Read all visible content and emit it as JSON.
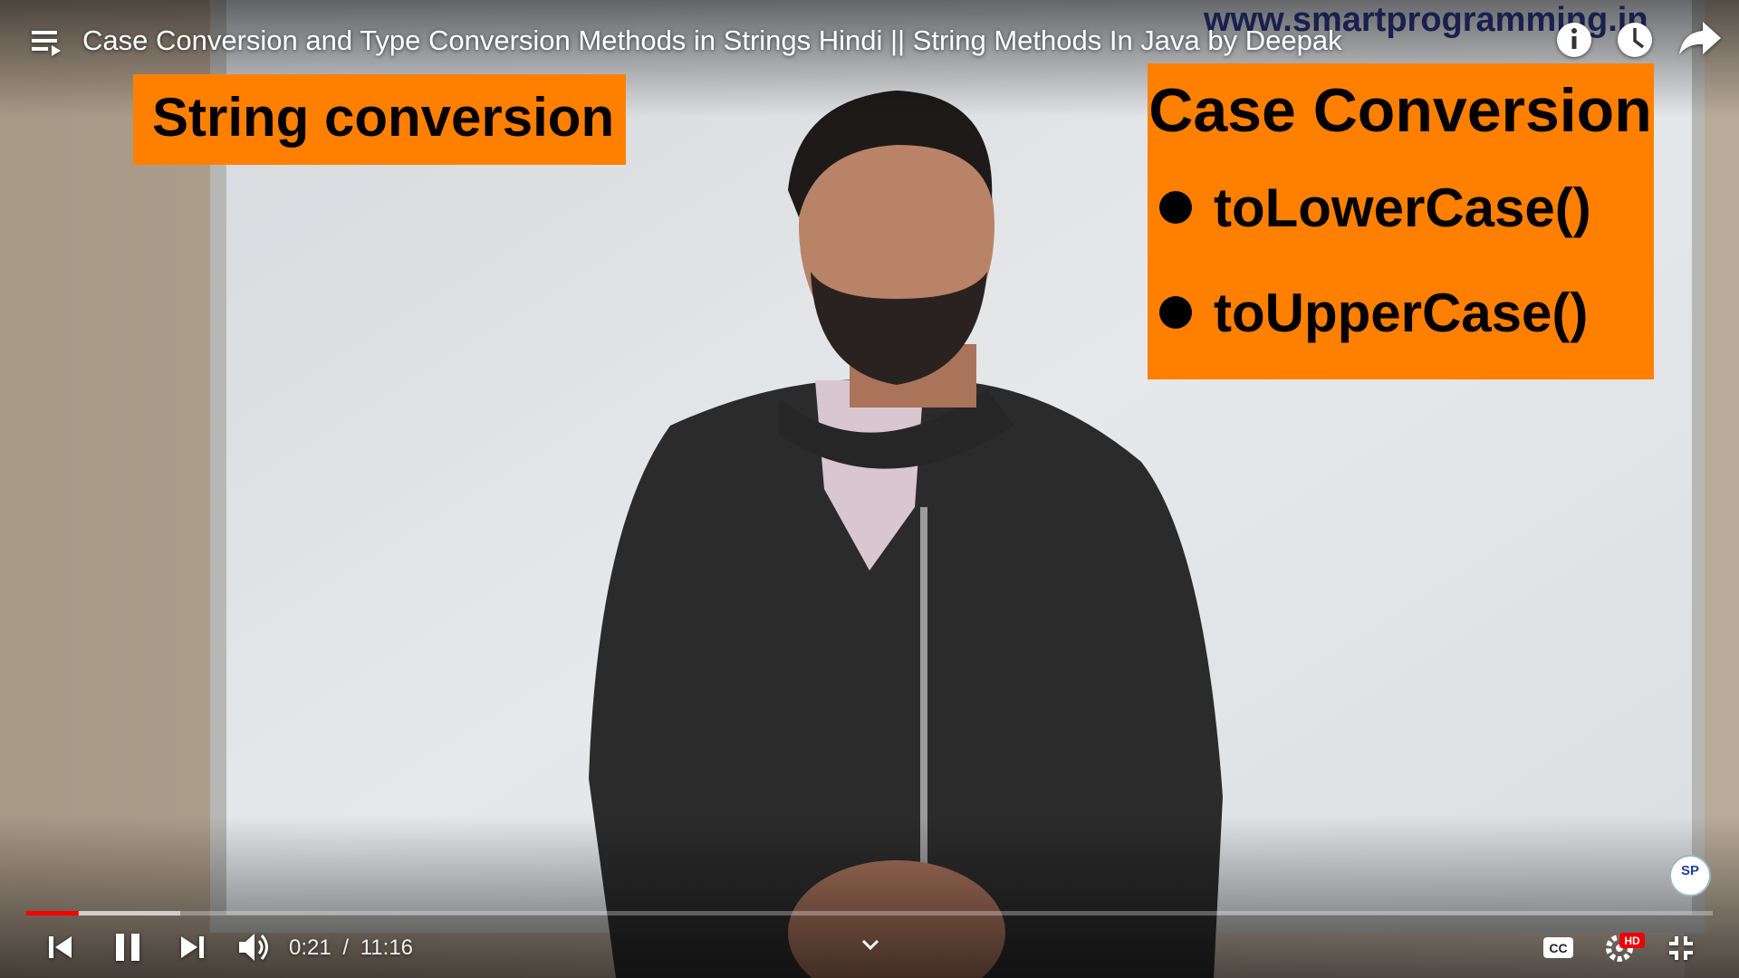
{
  "player": {
    "title": "Case Conversion and Type Conversion Methods in Strings Hindi || String Methods In Java by Deepak",
    "watermark": "www.smartprogramming.in",
    "overlay_left": "String conversion",
    "overlay_right": {
      "heading": "Case Conversion",
      "items": [
        "toLowerCase()",
        "toUpperCase()"
      ]
    },
    "current_time": "0:21",
    "separator": "/",
    "duration": "11:16",
    "cc_label": "CC",
    "hd_badge": "HD",
    "logo_text": "SP"
  }
}
